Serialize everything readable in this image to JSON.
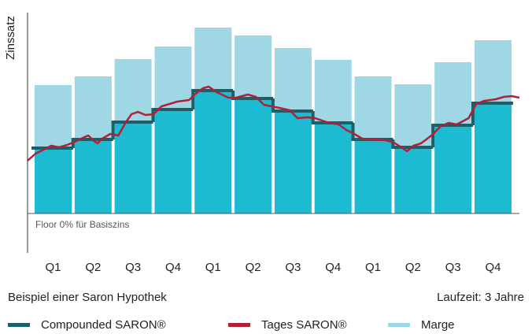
{
  "chart_data": {
    "type": "bar",
    "ylabel": "Zinssatz",
    "annotation": "Floor 0% für Basiszins",
    "footer_left": "Beispiel einer Saron Hypothek",
    "footer_right": "Laufzeit: 3 Jahre",
    "categories": [
      "Q1",
      "Q2",
      "Q3",
      "Q4",
      "Q1",
      "Q2",
      "Q3",
      "Q4",
      "Q1",
      "Q2",
      "Q3",
      "Q4"
    ],
    "xlim": [
      -0.14,
      12.16
    ],
    "ylim": [
      -0.5,
      2.55
    ],
    "stacked": true,
    "series": [
      {
        "name": "Compounded SARON®",
        "type": "bar",
        "color": "#1cbbd2",
        "line_color": "#1b5f69",
        "values": [
          0.83,
          0.94,
          1.16,
          1.32,
          1.56,
          1.46,
          1.3,
          1.15,
          0.94,
          0.84,
          1.12,
          1.4
        ]
      },
      {
        "name": "Tages SARON®",
        "type": "line",
        "color": "#b22038",
        "x": [
          -0.14,
          0.06,
          0.26,
          0.45,
          0.65,
          0.85,
          1.04,
          1.24,
          1.38,
          1.5,
          1.61,
          1.73,
          1.93,
          2.13,
          2.32,
          2.46,
          2.62,
          2.81,
          3.01,
          3.21,
          3.41,
          3.6,
          3.9,
          4.06,
          4.25,
          4.39,
          4.59,
          4.88,
          5.08,
          5.37,
          5.57,
          5.77,
          5.96,
          6.16,
          6.42,
          6.61,
          6.85,
          7.05,
          7.34,
          7.64,
          7.83,
          8.03,
          8.23,
          8.43,
          8.82,
          9.02,
          9.21,
          9.35,
          9.51,
          9.7,
          9.96,
          10.2,
          10.39,
          10.59,
          10.89,
          11.08,
          11.28,
          11.57,
          11.77,
          11.97,
          12.16
        ],
        "values": [
          0.67,
          0.76,
          0.81,
          0.86,
          0.84,
          0.87,
          0.91,
          0.96,
          0.99,
          0.93,
          0.89,
          0.95,
          1.01,
          0.99,
          1.16,
          1.26,
          1.29,
          1.25,
          1.26,
          1.36,
          1.39,
          1.42,
          1.44,
          1.52,
          1.59,
          1.61,
          1.54,
          1.47,
          1.47,
          1.51,
          1.48,
          1.38,
          1.36,
          1.34,
          1.31,
          1.21,
          1.22,
          1.21,
          1.16,
          1.13,
          1.06,
          1.01,
          0.95,
          0.94,
          0.93,
          0.9,
          0.84,
          0.79,
          0.86,
          0.89,
          0.99,
          1.11,
          1.15,
          1.13,
          1.21,
          1.39,
          1.43,
          1.45,
          1.48,
          1.49,
          1.47
        ]
      },
      {
        "name": "Marge",
        "type": "bar",
        "color": "#9fd7e5",
        "values": [
          0.8,
          0.8,
          0.8,
          0.8,
          0.8,
          0.8,
          0.8,
          0.8,
          0.8,
          0.8,
          0.8,
          0.8
        ]
      }
    ]
  }
}
